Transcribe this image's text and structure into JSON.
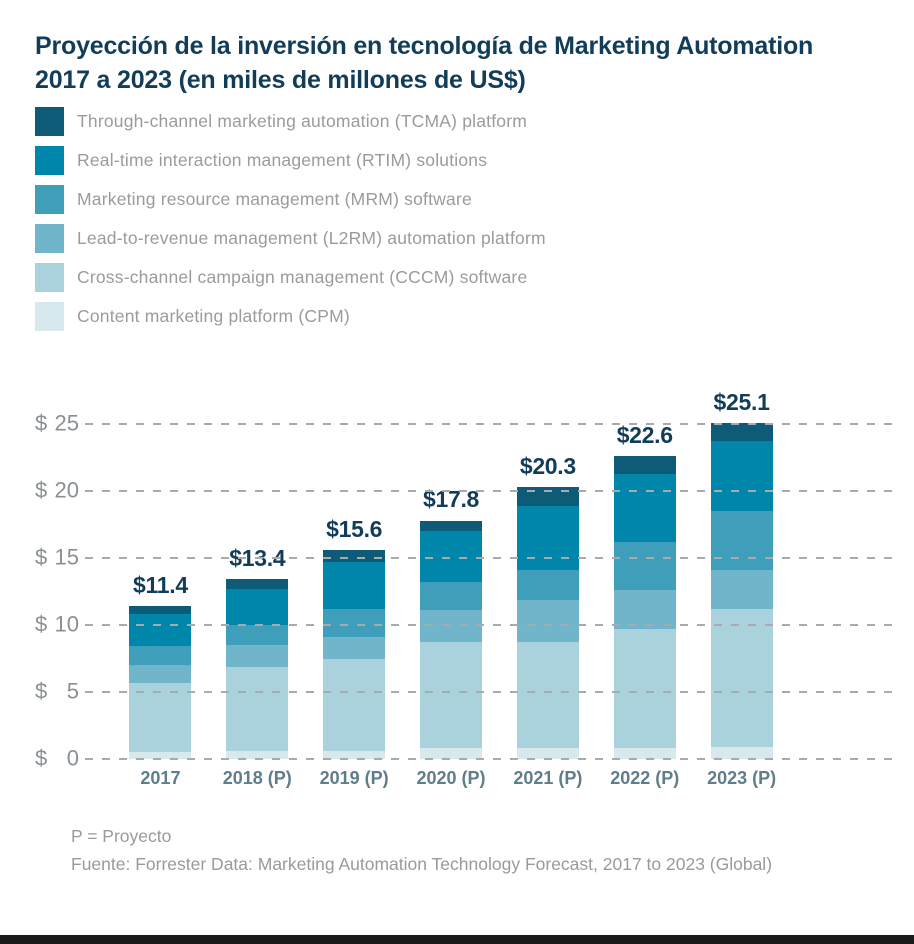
{
  "title": {
    "line1": "Proyección de la inversión en tecnología de Marketing Automation",
    "line2": "2017 a 2023 (en miles de millones de US$)"
  },
  "colors": {
    "title_text": "#123d5a",
    "bar_value_text": "#123d5a",
    "legend_text": "#9b9b9b",
    "y_axis_text": "#8a9094",
    "x_axis_text": "#5f7d8a",
    "gridline": "#a6abae",
    "background": "#ffffff",
    "bottom_bar": "#1a1a1a"
  },
  "chart_data": {
    "type": "bar",
    "stacked": true,
    "title": "Proyección de la inversión en tecnología de Marketing Automation 2017 a 2023 (en miles de millones de US$)",
    "categories": [
      "2017",
      "2018 (P)",
      "2019 (P)",
      "2020 (P)",
      "2021 (P)",
      "2022 (P)",
      "2023 (P)"
    ],
    "totals": [
      11.4,
      13.4,
      15.6,
      17.8,
      20.3,
      22.6,
      25.1
    ],
    "totals_display": [
      "$11.4",
      "$13.4",
      "$15.6",
      "$17.8",
      "$20.3",
      "$22.6",
      "$25.1"
    ],
    "series": [
      {
        "name": "Through-channel marketing automation (TCMA) platform",
        "color": "#0d5b77",
        "values": [
          0.6,
          0.7,
          0.9,
          0.8,
          1.4,
          1.3,
          1.4
        ]
      },
      {
        "name": "Real-time interaction management (RTIM) solutions",
        "color": "#0086ab",
        "values": [
          2.4,
          2.7,
          3.5,
          3.8,
          4.8,
          5.1,
          5.2
        ]
      },
      {
        "name": "Marketing resource management (MRM) software",
        "color": "#3f9fba",
        "values": [
          1.4,
          1.5,
          2.1,
          2.1,
          2.2,
          3.6,
          4.4
        ]
      },
      {
        "name": "Lead-to-revenue management (L2RM) automation platform",
        "color": "#70b5c9",
        "values": [
          1.3,
          1.6,
          1.6,
          2.4,
          3.2,
          2.9,
          2.9
        ]
      },
      {
        "name": "Cross-channel campaign management (CCCM) software",
        "color": "#a9d2dc",
        "values": [
          5.2,
          6.3,
          6.9,
          7.9,
          7.9,
          8.9,
          10.3
        ]
      },
      {
        "name": "Content marketing platform (CPM)",
        "color": "#d8e9ee",
        "values": [
          0.5,
          0.6,
          0.6,
          0.8,
          0.8,
          0.8,
          0.9
        ]
      }
    ],
    "y_ticks": [
      {
        "value": 25,
        "label": "$25"
      },
      {
        "value": 20,
        "label": "$20"
      },
      {
        "value": 15,
        "label": "$15"
      },
      {
        "value": 10,
        "label": "$10"
      },
      {
        "value": 5,
        "label": "$ 5"
      },
      {
        "value": 0,
        "label": "$ 0"
      }
    ],
    "ylim": [
      0,
      27
    ],
    "grid": "horizontal-dashed",
    "legend_position": "top-left"
  },
  "footer": {
    "note": "P = Proyecto",
    "source": "Fuente: Forrester Data: Marketing Automation Technology Forecast, 2017 to 2023 (Global)"
  }
}
